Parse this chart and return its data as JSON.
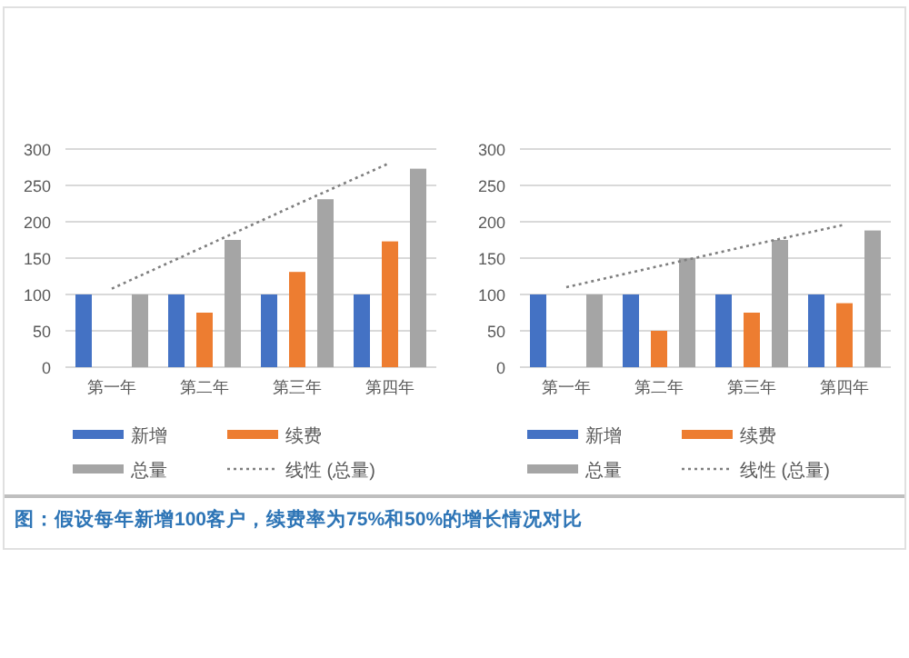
{
  "chart_data": [
    {
      "type": "bar",
      "categories": [
        "第一年",
        "第二年",
        "第三年",
        "第四年"
      ],
      "ylim": [
        0,
        300
      ],
      "yticks": [
        0,
        50,
        100,
        150,
        200,
        250,
        300
      ],
      "grid": "y",
      "legend": "bottom",
      "series": [
        {
          "name": "新增",
          "color": "#4472c4",
          "values": [
            100,
            100,
            100,
            100
          ]
        },
        {
          "name": "续费",
          "color": "#ed7d31",
          "values": [
            0,
            75,
            131,
            173
          ]
        },
        {
          "name": "总量",
          "color": "#a5a5a5",
          "values": [
            100,
            175,
            231,
            273
          ]
        },
        {
          "name": "线性 (总量)",
          "type": "line",
          "line_style": "dotted",
          "color": "#7f7f7f",
          "values": [
            108,
            166,
            224,
            281
          ]
        }
      ],
      "annotations": [
        "图：假设每年新增100客户，续费率为75%和50%的增长情况对比"
      ]
    },
    {
      "type": "bar",
      "categories": [
        "第一年",
        "第二年",
        "第三年",
        "第四年"
      ],
      "ylim": [
        0,
        300
      ],
      "yticks": [
        0,
        50,
        100,
        150,
        200,
        250,
        300
      ],
      "grid": "y",
      "legend": "bottom",
      "series": [
        {
          "name": "新增",
          "color": "#4472c4",
          "values": [
            100,
            100,
            100,
            100
          ]
        },
        {
          "name": "续费",
          "color": "#ed7d31",
          "values": [
            0,
            50,
            75,
            88
          ]
        },
        {
          "name": "总量",
          "color": "#a5a5a5",
          "values": [
            100,
            150,
            175,
            188
          ]
        },
        {
          "name": "线性 (总量)",
          "type": "line",
          "line_style": "dotted",
          "color": "#7f7f7f",
          "values": [
            110,
            139,
            168,
            196
          ]
        }
      ]
    }
  ]
}
